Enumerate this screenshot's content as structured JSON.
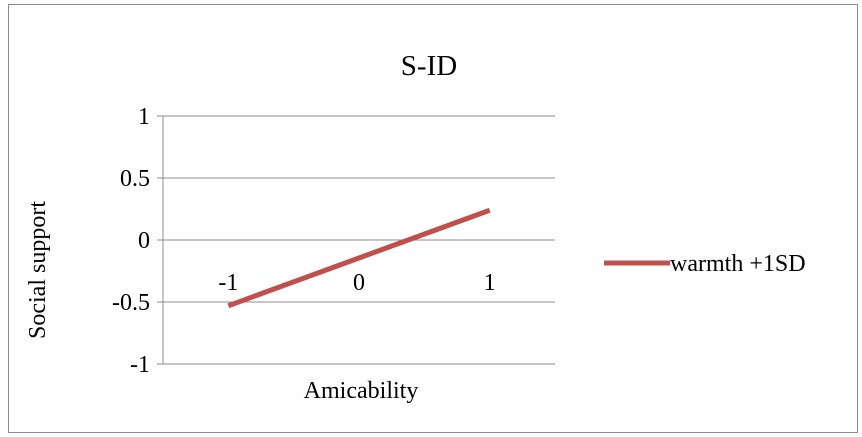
{
  "chart_data": {
    "type": "line",
    "title": "S-ID",
    "xlabel": "Amicability",
    "ylabel": "Social support",
    "x": [
      -1,
      0,
      1
    ],
    "xlim": [
      -1.5,
      1.5
    ],
    "ylim": [
      -1,
      1
    ],
    "yticks": [
      1,
      0.5,
      0,
      -0.5,
      -1
    ],
    "ytick_labels": [
      "1",
      "0.5",
      "0",
      "-0.5",
      "-1"
    ],
    "xticks": [
      -1,
      0,
      1
    ],
    "xtick_labels": [
      "-1",
      "0",
      "1"
    ],
    "series": [
      {
        "name": "warmth +1SD",
        "color": "#c0504d",
        "values": [
          -0.53,
          -0.145,
          0.24
        ]
      }
    ],
    "grid": true,
    "legend_position": "right"
  }
}
